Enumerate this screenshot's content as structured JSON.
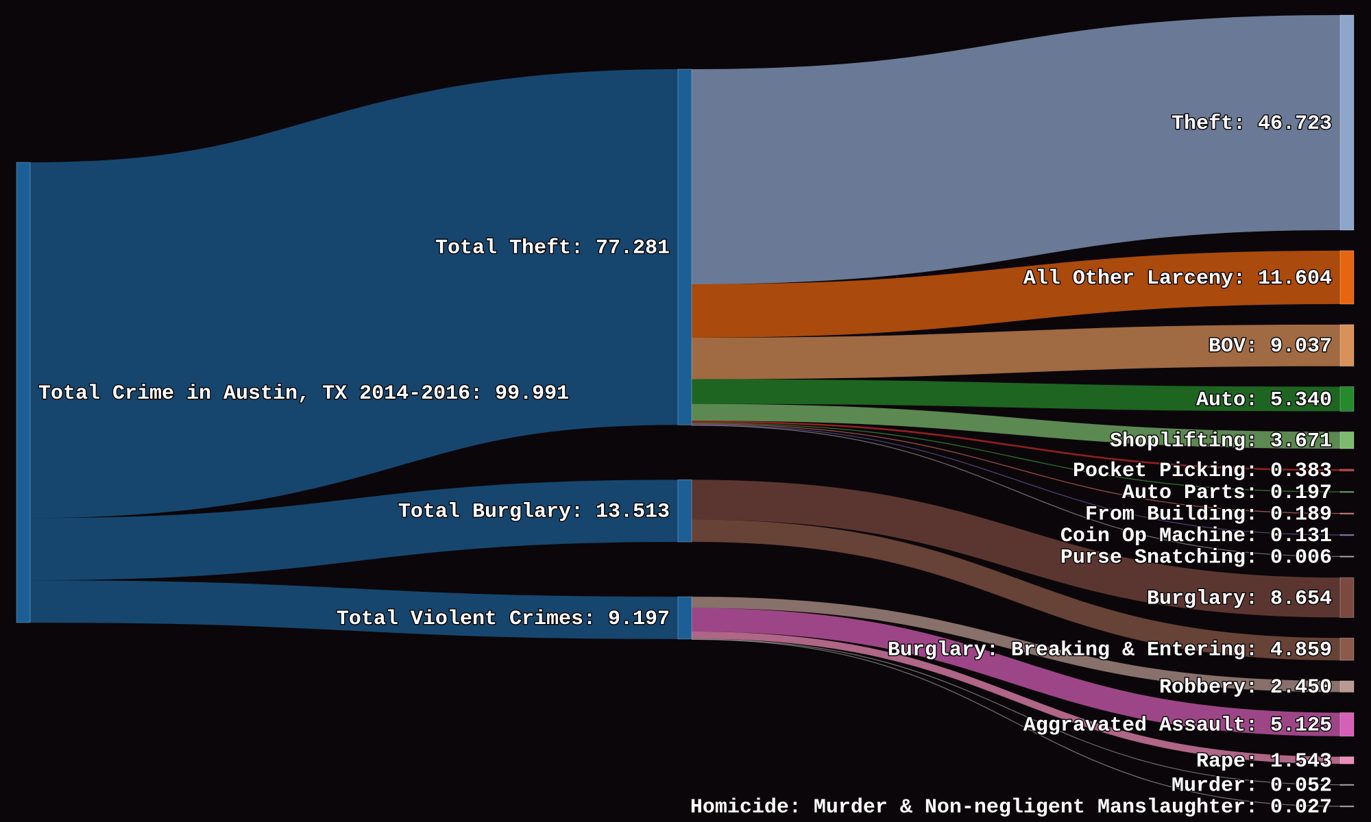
{
  "chart_data": {
    "type": "sankey",
    "title": "",
    "nodes": [
      {
        "id": "total",
        "name": "Total Crime in Austin, TX 2014-2016",
        "value_label": "99.991",
        "color": "#1b5f96"
      },
      {
        "id": "theft_total",
        "name": "Total Theft",
        "value_label": "77.281",
        "color": "#1b5f96"
      },
      {
        "id": "burglary_total",
        "name": "Total Burglary",
        "value_label": "13.513",
        "color": "#1b5f96"
      },
      {
        "id": "violent_total",
        "name": "Total Violent Crimes",
        "value_label": "9.197",
        "color": "#1b5f96"
      },
      {
        "id": "theft",
        "name": "Theft",
        "value_label": "46.723",
        "color": "#8fa6cc"
      },
      {
        "id": "larceny",
        "name": "All Other Larceny",
        "value_label": "11.604",
        "color": "#e8650f"
      },
      {
        "id": "bov",
        "name": "BOV",
        "value_label": "9.037",
        "color": "#d9915a"
      },
      {
        "id": "auto",
        "name": "Auto",
        "value_label": "5.340",
        "color": "#258a2c"
      },
      {
        "id": "shoplifting",
        "name": "Shoplifting",
        "value_label": "3.671",
        "color": "#7cbb6e"
      },
      {
        "id": "pocket",
        "name": "Pocket Picking",
        "value_label": "0.383",
        "color": "#c62b2b"
      },
      {
        "id": "autoparts",
        "name": "Auto Parts",
        "value_label": "0.197",
        "color": "#3a9c3a"
      },
      {
        "id": "frombuilding",
        "name": "From Building",
        "value_label": "0.189",
        "color": "#d96a6a"
      },
      {
        "id": "coinop",
        "name": "Coin Op Machine",
        "value_label": "0.131",
        "color": "#6b5fae"
      },
      {
        "id": "purse",
        "name": "Purse Snatching",
        "value_label": "0.006",
        "color": "#9a9a9a"
      },
      {
        "id": "burglary",
        "name": "Burglary",
        "value_label": "8.654",
        "color": "#7a4a40"
      },
      {
        "id": "bne",
        "name": "Burglary: Breaking & Entering",
        "value_label": "4.859",
        "color": "#8b5a4a"
      },
      {
        "id": "robbery",
        "name": "Robbery",
        "value_label": "2.450",
        "color": "#b89a92"
      },
      {
        "id": "aggravated",
        "name": "Aggravated Assault",
        "value_label": "5.125",
        "color": "#d65fb8"
      },
      {
        "id": "rape",
        "name": "Rape",
        "value_label": "1.543",
        "color": "#ee8cb8"
      },
      {
        "id": "murder",
        "name": "Murder",
        "value_label": "0.052",
        "color": "#9a9a9a"
      },
      {
        "id": "homicide",
        "name": "Homicide: Murder & Non-negligent Manslaughter",
        "value_label": "0.027",
        "color": "#a0a0a0"
      }
    ],
    "links": [
      {
        "source": "total",
        "target": "theft_total",
        "value": 77.281
      },
      {
        "source": "total",
        "target": "burglary_total",
        "value": 13.513
      },
      {
        "source": "total",
        "target": "violent_total",
        "value": 9.197
      },
      {
        "source": "theft_total",
        "target": "theft",
        "value": 46.723
      },
      {
        "source": "theft_total",
        "target": "larceny",
        "value": 11.604
      },
      {
        "source": "theft_total",
        "target": "bov",
        "value": 9.037
      },
      {
        "source": "theft_total",
        "target": "auto",
        "value": 5.34
      },
      {
        "source": "theft_total",
        "target": "shoplifting",
        "value": 3.671
      },
      {
        "source": "theft_total",
        "target": "pocket",
        "value": 0.383
      },
      {
        "source": "theft_total",
        "target": "autoparts",
        "value": 0.197
      },
      {
        "source": "theft_total",
        "target": "frombuilding",
        "value": 0.189
      },
      {
        "source": "theft_total",
        "target": "coinop",
        "value": 0.131
      },
      {
        "source": "theft_total",
        "target": "purse",
        "value": 0.006
      },
      {
        "source": "burglary_total",
        "target": "burglary",
        "value": 8.654
      },
      {
        "source": "burglary_total",
        "target": "bne",
        "value": 4.859
      },
      {
        "source": "violent_total",
        "target": "robbery",
        "value": 2.45
      },
      {
        "source": "violent_total",
        "target": "aggravated",
        "value": 5.125
      },
      {
        "source": "violent_total",
        "target": "rape",
        "value": 1.543
      },
      {
        "source": "violent_total",
        "target": "murder",
        "value": 0.052
      },
      {
        "source": "violent_total",
        "target": "homicide",
        "value": 0.027
      }
    ]
  }
}
